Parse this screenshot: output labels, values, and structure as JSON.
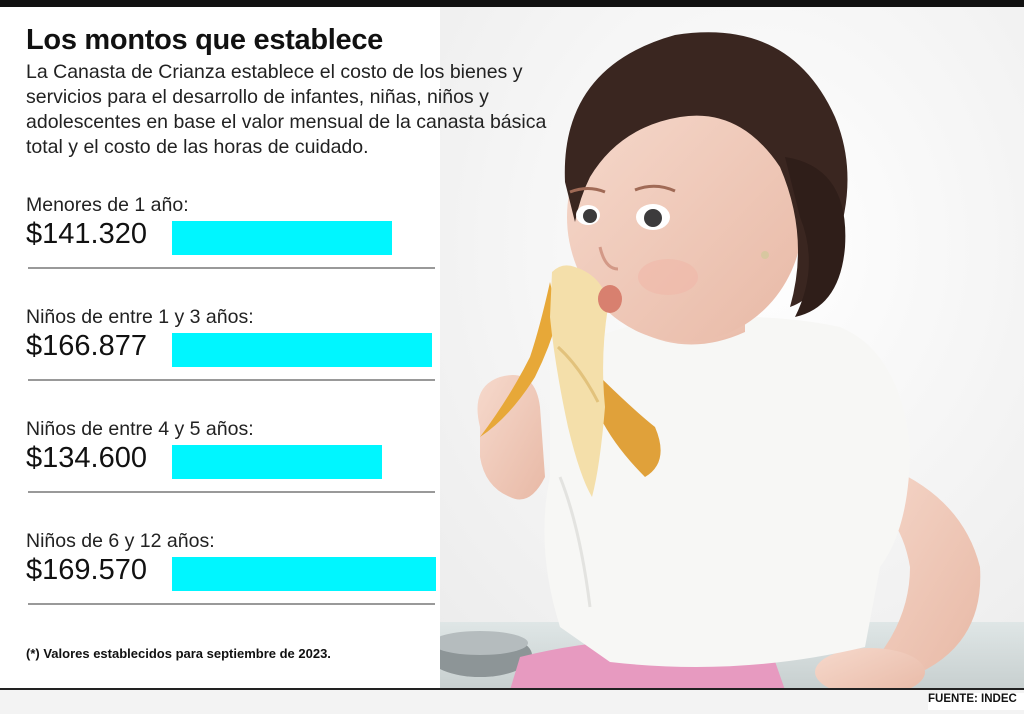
{
  "header": {
    "title": "Los montos que establece",
    "intro": "La Canasta de Crianza establece el costo de los bienes y servicios para el desarrollo de infantes, niñas, niños y adolescentes en base el valor mensual de la canasta básica total y el costo de las horas de cuidado."
  },
  "chart_data": {
    "type": "bar",
    "orientation": "horizontal",
    "categories": [
      "Menores de 1 año:",
      "Niños de entre 1 y 3 años:",
      "Niños de entre 4 y 5 años:",
      "Niños de 6 y 12 años:"
    ],
    "values": [
      141320,
      166877,
      134600,
      169570
    ],
    "value_labels": [
      "$141.320",
      "$166.877",
      "$134.600",
      "$169.570"
    ],
    "bar_color": "#00f6ff",
    "grid": false,
    "legend": "none"
  },
  "footer": {
    "note": "(*) Valores establecidos para septiembre de 2023.",
    "source": "FUENTE: INDEC"
  },
  "photo": {
    "icon": "toddler-eating-banana-photo"
  }
}
